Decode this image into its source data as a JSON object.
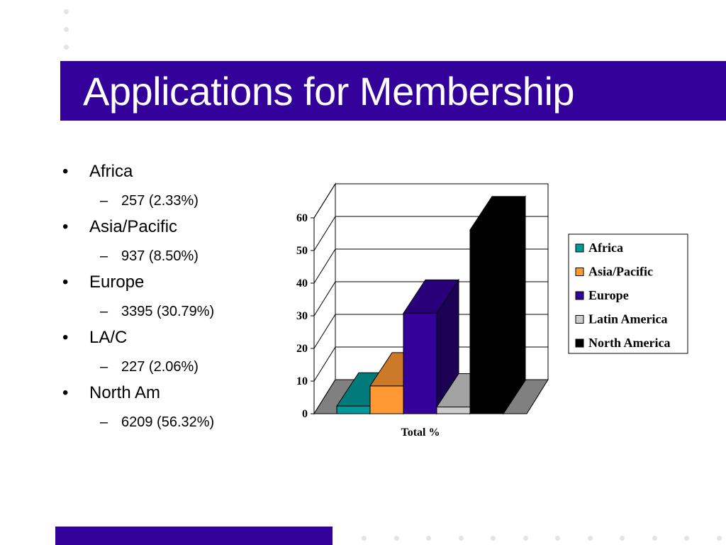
{
  "slide": {
    "title": "Applications for Membership",
    "colors": {
      "accent": "#330099",
      "dots": "#e3e3e8"
    }
  },
  "bullets": [
    {
      "label": "Africa",
      "sub": "257 (2.33%)"
    },
    {
      "label": "Asia/Pacific",
      "sub": "937 (8.50%)"
    },
    {
      "label": "Europe",
      "sub": "3395 (30.79%)"
    },
    {
      "label": "LA/C",
      "sub": "227 (2.06%)"
    },
    {
      "label": "North Am",
      "sub": "6209 (56.32%)"
    }
  ],
  "chart_data": {
    "type": "bar",
    "style": "3d-clustered",
    "categories": [
      "Total %"
    ],
    "series": [
      {
        "name": "Africa",
        "values": [
          2.33
        ],
        "color": "#009999"
      },
      {
        "name": "Asia/Pacific",
        "values": [
          8.5
        ],
        "color": "#FF9933"
      },
      {
        "name": "Europe",
        "values": [
          30.79
        ],
        "color": "#330099"
      },
      {
        "name": "Latin America",
        "values": [
          2.06
        ],
        "color": "#CCCCCC"
      },
      {
        "name": "North America",
        "values": [
          56.32
        ],
        "color": "#000000"
      }
    ],
    "ylim": [
      0,
      60
    ],
    "yticks": [
      0,
      10,
      20,
      30,
      40,
      50,
      60
    ],
    "xlabel": "Total %",
    "ylabel": "",
    "title": "",
    "grid": true,
    "legend": "right"
  }
}
